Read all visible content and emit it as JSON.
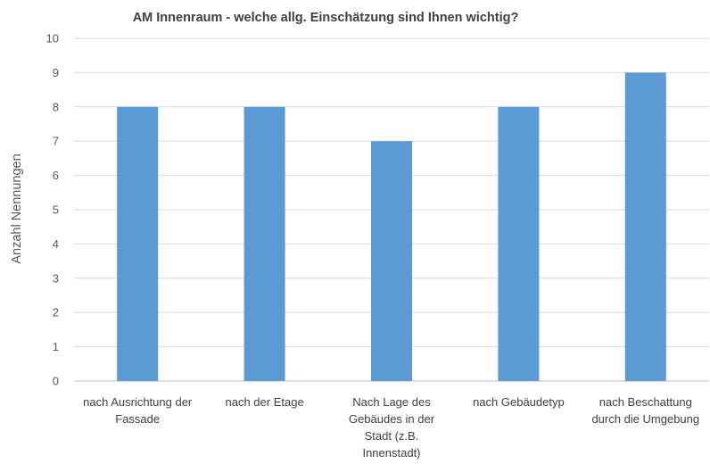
{
  "chart_data": {
    "type": "bar",
    "title": "AM Innenraum - welche allg. Einschätzung sind Ihnen wichtig?",
    "ylabel": "Anzahl Nennungen",
    "xlabel": "",
    "ylim": [
      0,
      10
    ],
    "y_ticks": [
      0,
      1,
      2,
      3,
      4,
      5,
      6,
      7,
      8,
      9,
      10
    ],
    "grid": true,
    "legend": "none",
    "categories": [
      [
        "nach Ausrichtung der",
        "Fassade"
      ],
      [
        "nach der Etage"
      ],
      [
        "Nach Lage des",
        "Gebäudes in der",
        "Stadt (z.B.",
        "Innenstadt)"
      ],
      [
        "nach Gebäudetyp"
      ],
      [
        "nach Beschattung",
        "durch die Umgebung"
      ]
    ],
    "values": [
      8,
      8,
      7,
      8,
      9
    ],
    "colors": {
      "bar": "#5B9BD5",
      "grid": "#D9D9D9",
      "axis": "#BFBFBF"
    }
  }
}
